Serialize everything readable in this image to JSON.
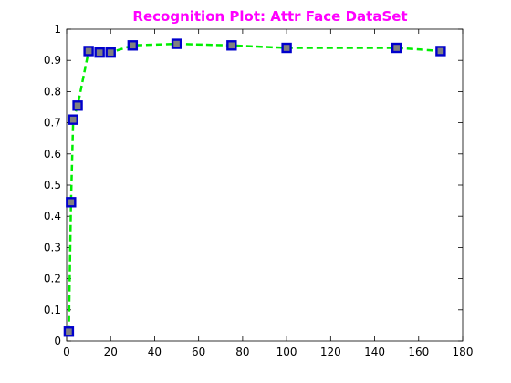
{
  "chart_data": {
    "type": "line",
    "title": "Recognition Plot: Attr Face DataSet",
    "xlabel": "",
    "ylabel": "",
    "xlim": [
      0,
      180
    ],
    "ylim": [
      0,
      1
    ],
    "xticks": [
      0,
      20,
      40,
      60,
      80,
      100,
      120,
      140,
      160,
      180
    ],
    "yticks": [
      0,
      0.1,
      0.2,
      0.3,
      0.4,
      0.5,
      0.6,
      0.7,
      0.8,
      0.9,
      1
    ],
    "grid": false,
    "x": [
      1,
      2,
      3,
      5,
      10,
      15,
      20,
      30,
      50,
      75,
      100,
      150,
      170
    ],
    "series": [
      {
        "name": "",
        "values": [
          0.03,
          0.445,
          0.71,
          0.755,
          0.93,
          0.925,
          0.925,
          0.948,
          0.953,
          0.948,
          0.94,
          0.94,
          0.93
        ]
      }
    ],
    "colors": {
      "title": "#ff00ff",
      "line": "#00ee00",
      "marker_fill": "#808080",
      "marker_edge": "#0000cc"
    },
    "line_style": "dashed",
    "marker": "square"
  }
}
